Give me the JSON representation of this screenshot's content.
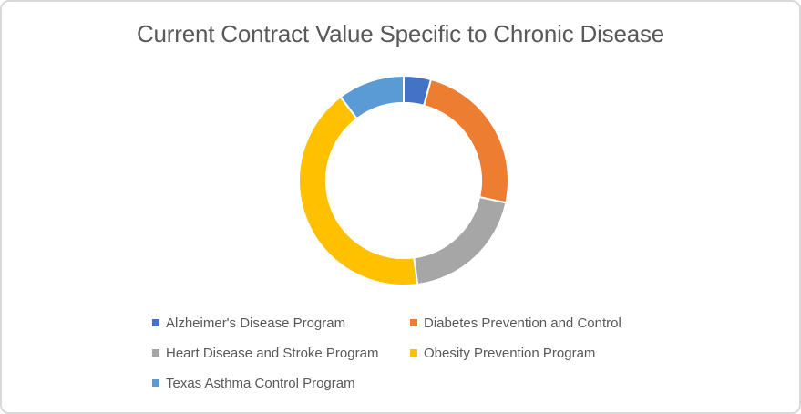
{
  "frame": {
    "background": "#FFFFFF",
    "border_color": "#D9D9D9"
  },
  "chart_data": {
    "type": "pie",
    "subtype": "donut",
    "title": "Current Contract Value Specific to Chronic Disease",
    "title_color": "#595959",
    "categories": [
      "Alzheimer's Disease Program",
      "Diabetes Prevention and Control",
      "Heart Disease and Stroke Program",
      "Obesity Prevention Program",
      "Texas Asthma Control Program"
    ],
    "values": [
      4.2,
      24.2,
      19.5,
      41.8,
      10.3
    ],
    "colors": [
      "#4472C4",
      "#ED7D31",
      "#A6A6A6",
      "#FFC000",
      "#5B9BD5"
    ],
    "start_angle_deg": 0,
    "hole_ratio": 0.74,
    "slice_border_color": "#FFFFFF",
    "legend_position": "bottom",
    "legend_text_color": "#595959",
    "grid": false,
    "data_labels": false
  }
}
